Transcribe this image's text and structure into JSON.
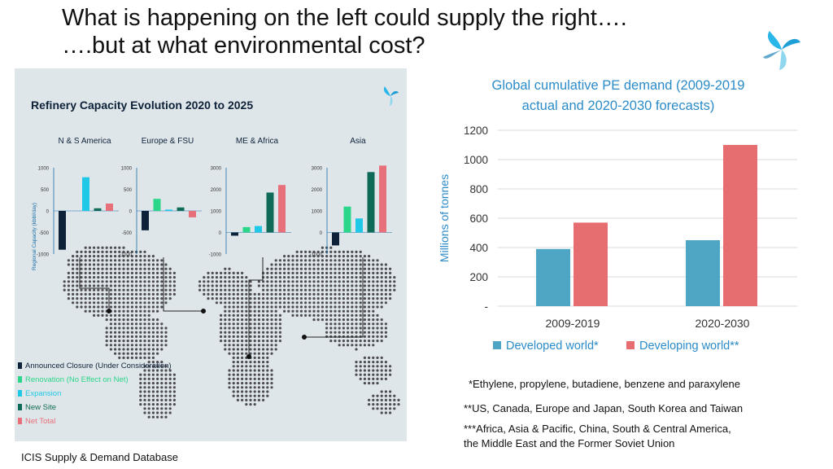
{
  "slide": {
    "title_line1": "What is happening on the left could supply the right….",
    "title_line2": "….but at what environmental cost?",
    "source": "ICIS Supply & Demand Database",
    "notes": [
      "*Ethylene, propylene, butadiene, benzene and paraxylene",
      "**US, Canada, Europe and  Japan, South Korea and Taiwan",
      "***Africa, Asia & Pacific, China, South & Central America,",
      "the Middle East and the Former Soviet Union"
    ]
  },
  "refinery": {
    "title": "Refinery Capacity Evolution 2020 to 2025",
    "ylabel": "Regional Capacity (kbbl/day)",
    "legend": [
      {
        "label": "Announced Closure (Under Consideration)",
        "color": "#0d2238"
      },
      {
        "label": "Renovation (No Effect on Net)",
        "color": "#2bd68a"
      },
      {
        "label": "Expansion",
        "color": "#1ec8e6"
      },
      {
        "label": "New Site",
        "color": "#0f6b58"
      },
      {
        "label": "Net Total",
        "color": "#e8707a"
      }
    ]
  },
  "chart_data": [
    {
      "type": "bar",
      "title": "N & S America",
      "categories": [
        "Announced Closure (Under Consideration)",
        "Renovation (No Effect on Net)",
        "Expansion",
        "New Site",
        "Net Total"
      ],
      "values": [
        -900,
        0,
        780,
        60,
        170
      ],
      "ylim": [
        -1000,
        1000
      ],
      "yticks": [
        -1000,
        -500,
        0,
        500,
        1000
      ]
    },
    {
      "type": "bar",
      "title": "Europe & FSU",
      "categories": [
        "Announced Closure (Under Consideration)",
        "Renovation (No Effect on Net)",
        "Expansion",
        "New Site",
        "Net Total"
      ],
      "values": [
        -450,
        280,
        30,
        80,
        -150
      ],
      "ylim": [
        -1000,
        1000
      ],
      "yticks": [
        -1000,
        -500,
        0,
        500,
        1000
      ]
    },
    {
      "type": "bar",
      "title": "ME & Africa",
      "categories": [
        "Announced Closure (Under Consideration)",
        "Renovation (No Effect on Net)",
        "Expansion",
        "New Site",
        "Net Total"
      ],
      "values": [
        -150,
        250,
        300,
        1850,
        2200
      ],
      "ylim": [
        -1000,
        3000
      ],
      "yticks": [
        -1000,
        0,
        1000,
        2000,
        3000
      ]
    },
    {
      "type": "bar",
      "title": "Asia",
      "categories": [
        "Announced Closure (Under Consideration)",
        "Renovation (No Effect on Net)",
        "Expansion",
        "New Site",
        "Net Total"
      ],
      "values": [
        -600,
        1200,
        650,
        2800,
        3100
      ],
      "ylim": [
        -1000,
        3000
      ],
      "yticks": [
        -1000,
        0,
        1000,
        2000,
        3000
      ]
    },
    {
      "type": "bar",
      "title": "Global cumulative PE demand (2009-2019 actual and 2020-2030 forecasts)",
      "ylabel": "Millions of tonnes",
      "categories": [
        "2009-2019",
        "2020-2030"
      ],
      "series": [
        {
          "name": "Developed world*",
          "values": [
            390,
            450
          ],
          "color": "#4ea6c4"
        },
        {
          "name": "Developing world**",
          "values": [
            570,
            1100
          ],
          "color": "#e66d70"
        }
      ],
      "ylim": [
        0,
        1200
      ],
      "yticks": [
        0,
        200,
        400,
        600,
        800,
        1000,
        1200
      ],
      "zero_tick_label": "-",
      "grid": true,
      "legend": "bottom"
    }
  ]
}
